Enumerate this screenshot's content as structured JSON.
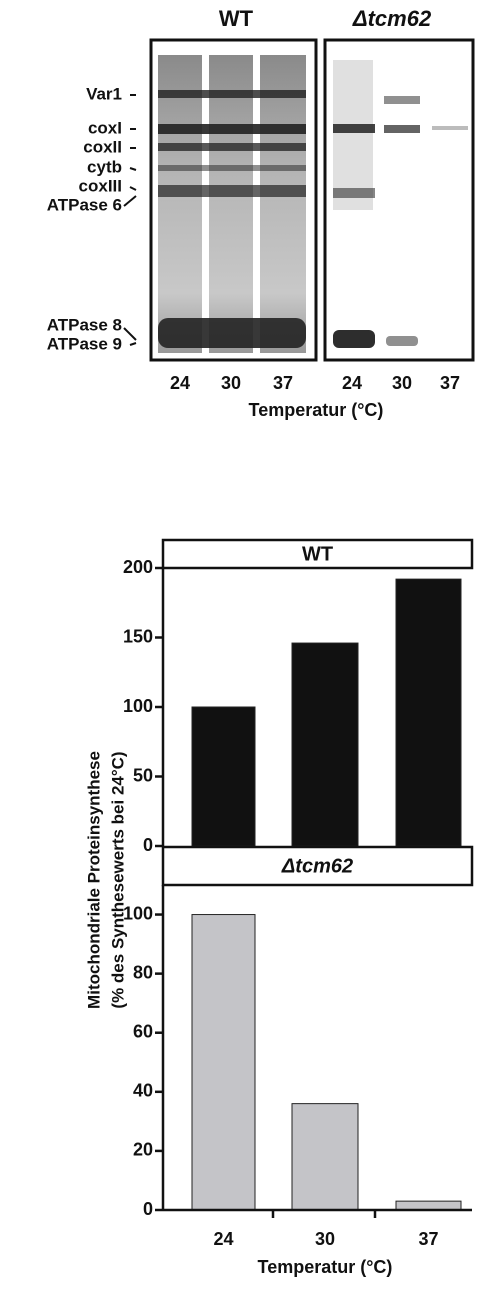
{
  "gel": {
    "panels": [
      {
        "title": "WT",
        "lanes": [
          "24",
          "30",
          "37"
        ]
      },
      {
        "title": "Δtcm62",
        "lanes": [
          "24",
          "30",
          "37"
        ]
      }
    ],
    "band_labels": [
      "Var1",
      "coxI",
      "coxII",
      "cytb",
      "coxIII",
      "ATPase 6",
      "ATPase 8",
      "ATPase 9"
    ],
    "xlabel": "Temperatur (°C)"
  },
  "y_axis_title": [
    "Mitochondriale Proteinsynthese",
    "(% des Synthesewerts bei 24°C)"
  ],
  "chart_data": [
    {
      "type": "bar",
      "title": "WT",
      "categories": [
        null,
        null,
        null
      ],
      "values": [
        100,
        146,
        192
      ],
      "color": "#111111",
      "ylim": [
        0,
        200
      ],
      "yticks": [
        0,
        50,
        100,
        150,
        200
      ]
    },
    {
      "type": "bar",
      "title": "Δtcm62",
      "categories": [
        "24",
        "30",
        "37"
      ],
      "values": [
        100,
        36,
        3
      ],
      "color": "#c4c4c8",
      "ylim": [
        0,
        110
      ],
      "yticks": [
        0,
        20,
        40,
        60,
        80,
        100
      ],
      "xlabel": "Temperatur (°C)"
    }
  ]
}
